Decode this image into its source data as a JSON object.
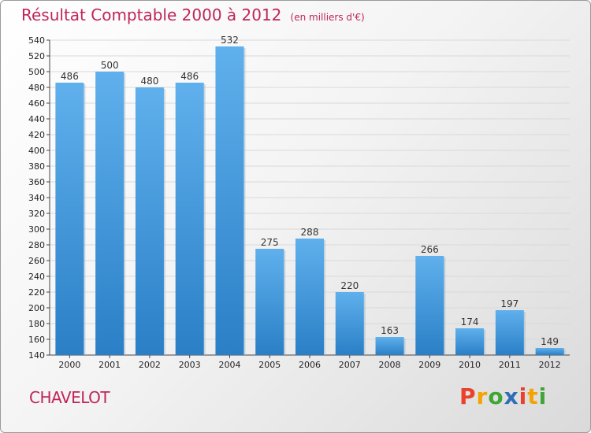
{
  "header": {
    "title": "Résultat Comptable 2000 à 2012",
    "subtitle": "(en milliers d'€)"
  },
  "footer": {
    "commune": "CHAVELOT",
    "brand_letters": [
      "P",
      "r",
      "o",
      "x",
      "i",
      "t",
      "i"
    ],
    "brand_colors": [
      "#e8412c",
      "#f4a300",
      "#3fa535",
      "#2f6db5",
      "#e8412c",
      "#f4a300",
      "#3fa535"
    ]
  },
  "colors": {
    "accent": "#c0245c",
    "bar_light": "#5fb0ec",
    "bar_dark": "#2a7fc6",
    "grid": "#d9d9d9"
  },
  "chart_data": {
    "type": "bar",
    "title": "Résultat Comptable 2000 à 2012",
    "subtitle": "(en milliers d'€)",
    "categories": [
      "2000",
      "2001",
      "2002",
      "2003",
      "2004",
      "2005",
      "2006",
      "2007",
      "2008",
      "2009",
      "2010",
      "2011",
      "2012"
    ],
    "values": [
      486,
      500,
      480,
      486,
      532,
      275,
      288,
      220,
      163,
      266,
      174,
      197,
      149
    ],
    "value_labels": [
      "486",
      "500",
      "480",
      "486",
      "532",
      "275",
      "288",
      "220",
      "163",
      "266",
      "174",
      "197",
      "149"
    ],
    "ylim": [
      140,
      540
    ],
    "yticks": [
      "140",
      "160",
      "180",
      "200",
      "220",
      "240",
      "260",
      "280",
      "300",
      "320",
      "340",
      "360",
      "380",
      "400",
      "420",
      "440",
      "460",
      "480",
      "500",
      "520",
      "540"
    ],
    "grid": true,
    "legend": "none"
  }
}
